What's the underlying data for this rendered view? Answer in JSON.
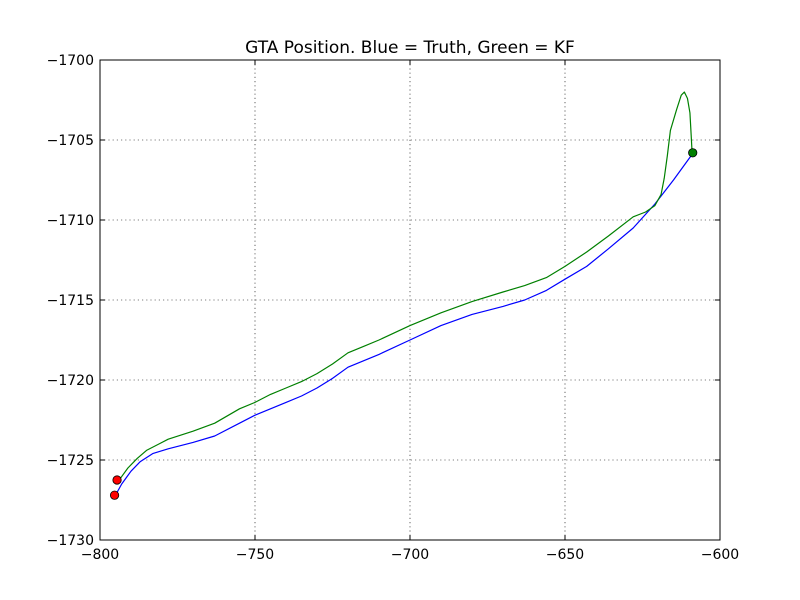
{
  "chart_data": {
    "type": "line",
    "title": "GTA Position. Blue = Truth, Green = KF",
    "xlabel": "",
    "ylabel": "",
    "xlim": [
      -800,
      -600
    ],
    "ylim": [
      -1730,
      -1700
    ],
    "x_ticks": [
      -800,
      -750,
      -700,
      -650,
      -600
    ],
    "y_ticks": [
      -1730,
      -1725,
      -1720,
      -1715,
      -1710,
      -1705,
      -1700
    ],
    "x_tick_labels": [
      "−800",
      "−750",
      "−700",
      "−650",
      "−600"
    ],
    "y_tick_labels": [
      "−1730",
      "−1725",
      "−1720",
      "−1715",
      "−1710",
      "−1705",
      "−1700"
    ],
    "grid": true,
    "series": [
      {
        "color": "#0000ff",
        "points": [
          [
            -795,
            -1727.2
          ],
          [
            -793,
            -1726.5
          ],
          [
            -790,
            -1725.7
          ],
          [
            -787,
            -1725.1
          ],
          [
            -783,
            -1724.6
          ],
          [
            -778,
            -1724.3
          ],
          [
            -770,
            -1723.9
          ],
          [
            -763,
            -1723.5
          ],
          [
            -755,
            -1722.7
          ],
          [
            -750,
            -1722.2
          ],
          [
            -745,
            -1721.8
          ],
          [
            -740,
            -1721.4
          ],
          [
            -735,
            -1721.0
          ],
          [
            -730,
            -1720.5
          ],
          [
            -725,
            -1719.9
          ],
          [
            -720,
            -1719.2
          ],
          [
            -715,
            -1718.8
          ],
          [
            -710,
            -1718.4
          ],
          [
            -700,
            -1717.5
          ],
          [
            -690,
            -1716.6
          ],
          [
            -680,
            -1715.9
          ],
          [
            -670,
            -1715.4
          ],
          [
            -663,
            -1715.0
          ],
          [
            -656,
            -1714.4
          ],
          [
            -650,
            -1713.7
          ],
          [
            -643,
            -1712.9
          ],
          [
            -636,
            -1711.8
          ],
          [
            -628,
            -1710.5
          ],
          [
            -621,
            -1709.0
          ],
          [
            -615,
            -1707.5
          ],
          [
            -609,
            -1705.9
          ]
        ]
      },
      {
        "color": "#008000",
        "points": [
          [
            -794,
            -1726.3
          ],
          [
            -791,
            -1725.5
          ],
          [
            -788,
            -1724.9
          ],
          [
            -785,
            -1724.4
          ],
          [
            -781,
            -1724.0
          ],
          [
            -778,
            -1723.7
          ],
          [
            -770,
            -1723.2
          ],
          [
            -763,
            -1722.7
          ],
          [
            -755,
            -1721.8
          ],
          [
            -750,
            -1721.4
          ],
          [
            -745,
            -1720.9
          ],
          [
            -740,
            -1720.5
          ],
          [
            -735,
            -1720.1
          ],
          [
            -730,
            -1719.6
          ],
          [
            -725,
            -1719.0
          ],
          [
            -720,
            -1718.3
          ],
          [
            -715,
            -1717.9
          ],
          [
            -710,
            -1717.5
          ],
          [
            -700,
            -1716.6
          ],
          [
            -690,
            -1715.8
          ],
          [
            -680,
            -1715.1
          ],
          [
            -670,
            -1714.5
          ],
          [
            -663,
            -1714.1
          ],
          [
            -656,
            -1713.6
          ],
          [
            -650,
            -1712.9
          ],
          [
            -643,
            -1712.0
          ],
          [
            -636,
            -1711.0
          ],
          [
            -628,
            -1709.8
          ],
          [
            -624,
            -1709.5
          ],
          [
            -621,
            -1709.1
          ],
          [
            -619,
            -1708.4
          ],
          [
            -618,
            -1707.4
          ],
          [
            -617,
            -1706.0
          ],
          [
            -616,
            -1704.4
          ],
          [
            -614,
            -1703.1
          ],
          [
            -612.5,
            -1702.2
          ],
          [
            -611.5,
            -1702.0
          ],
          [
            -610.5,
            -1702.4
          ],
          [
            -609.7,
            -1703.3
          ],
          [
            -609.3,
            -1704.7
          ],
          [
            -609,
            -1705.8
          ]
        ]
      }
    ],
    "markers": [
      {
        "x": -795.3,
        "y": -1727.2,
        "color": "#ff0000"
      },
      {
        "x": -794.5,
        "y": -1726.25,
        "color": "#ff0000"
      },
      {
        "x": -608.8,
        "y": -1705.8,
        "color": "#008000"
      }
    ]
  }
}
